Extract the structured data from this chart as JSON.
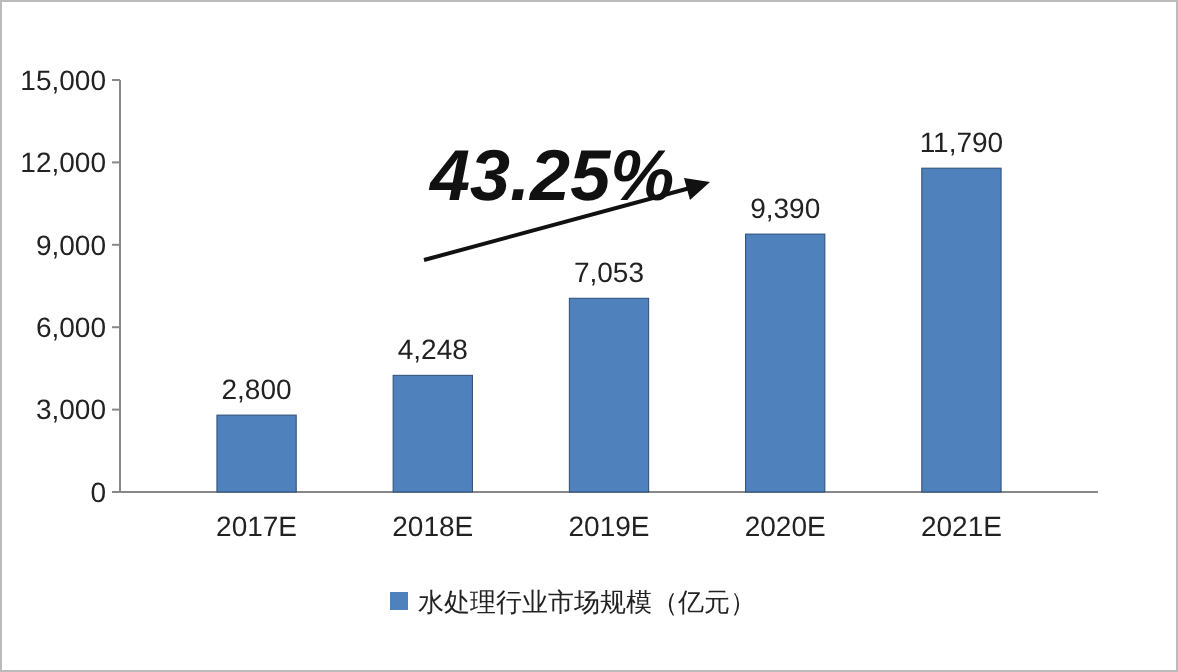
{
  "chart_data": {
    "type": "bar",
    "categories": [
      "2017E",
      "2018E",
      "2019E",
      "2020E",
      "2021E"
    ],
    "series": [
      {
        "name": "水处理行业市场规模（亿元）",
        "color": "#4f81bd",
        "values": [
          2800,
          4248,
          7053,
          9390,
          11790
        ],
        "value_labels": [
          "2,800",
          "4,248",
          "7,053",
          "9,390",
          "11,790"
        ]
      }
    ],
    "ylim": [
      0,
      15000
    ],
    "yticks": [
      0,
      {
        "value": 3000,
        "label": "3,000"
      },
      {
        "value": 6000,
        "label": "6,000"
      },
      {
        "value": 9000,
        "label": "9,000"
      },
      {
        "value": 12000,
        "label": "12,000"
      },
      {
        "value": 15000,
        "label": "15,000"
      }
    ],
    "annotations": [
      "43.25%"
    ],
    "legend": "bottom"
  }
}
